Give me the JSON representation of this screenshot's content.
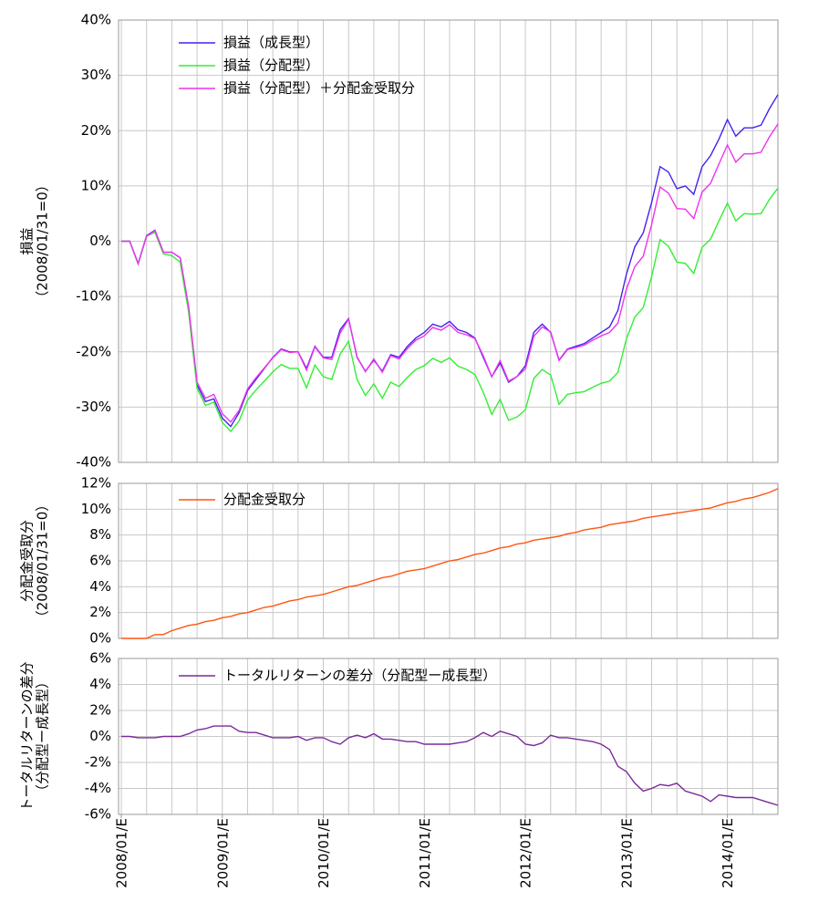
{
  "chart_data": [
    {
      "type": "line",
      "ylabel": [
        "損益",
        "（2008/01/31=0）"
      ],
      "ylim": [
        -40,
        40
      ],
      "yticks": [
        {
          "value": -40,
          "label": "-40%"
        },
        {
          "value": -30,
          "label": "-30%"
        },
        {
          "value": -20,
          "label": "-20%"
        },
        {
          "value": -10,
          "label": "-10%"
        },
        {
          "value": 0,
          "label": "0%"
        },
        {
          "value": 10,
          "label": "10%"
        },
        {
          "value": 20,
          "label": "20%"
        },
        {
          "value": 30,
          "label": "30%"
        },
        {
          "value": 40,
          "label": "40%"
        }
      ],
      "grid": true,
      "series": [
        {
          "name": "損益（成長型）",
          "color": "#4422ee",
          "values": [
            0,
            0,
            -4,
            1,
            2,
            -2,
            -2,
            -3,
            -12,
            -26,
            -29,
            -28.5,
            -32,
            -33.5,
            -31,
            -27,
            -25,
            -23,
            -21,
            -19.5,
            -20,
            -20,
            -23,
            -19,
            -21,
            -21,
            -16,
            -14,
            -21,
            -23.5,
            -21.5,
            -23.5,
            -20.5,
            -21,
            -19,
            -17.5,
            -16.5,
            -15,
            -15.5,
            -14.5,
            -16,
            -16.5,
            -17.5,
            -21,
            -24.5,
            -22,
            -25.5,
            -24.5,
            -22.5,
            -16.5,
            -15,
            -16.5,
            -21.5,
            -19.5,
            -19,
            -18.5,
            -17.5,
            -16.5,
            -15.5,
            -12.5,
            -6,
            -1,
            1.5,
            7,
            13.5,
            12.5,
            9.5,
            10,
            8.5,
            13.5,
            15.5,
            18.5,
            22,
            19,
            20.5,
            20.5,
            21,
            24,
            26.5
          ]
        },
        {
          "name": "損益（分配型）",
          "color": "#33ee33",
          "values": [
            0,
            0,
            -4.1,
            0.9,
            1.6,
            -2.3,
            -2.6,
            -3.8,
            -12.8,
            -26.6,
            -29.7,
            -29.1,
            -32.8,
            -34.4,
            -32.5,
            -28.7,
            -26.9,
            -25.3,
            -23.6,
            -22.3,
            -23,
            -23,
            -26.5,
            -22.4,
            -24.5,
            -25,
            -20.4,
            -18.1,
            -25,
            -27.9,
            -25.8,
            -28.4,
            -25.5,
            -26.3,
            -24.6,
            -23.2,
            -22.5,
            -21.2,
            -21.9,
            -21.1,
            -22.6,
            -23.2,
            -24.1,
            -27.3,
            -31.3,
            -28.6,
            -32.4,
            -31.8,
            -30.5,
            -24.8,
            -23.2,
            -24.2,
            -29.5,
            -27.7,
            -27.4,
            -27.2,
            -26.4,
            -25.7,
            -25.3,
            -23.7,
            -17.7,
            -13.7,
            -12,
            -6.4,
            0.3,
            -0.9,
            -3.8,
            -4,
            -5.8,
            -1.1,
            0.4,
            3.7,
            6.9,
            3.7,
            5,
            4.9,
            5,
            7.6,
            9.6
          ]
        },
        {
          "name": "損益（分配型）＋分配金受取分",
          "color": "#ee33ee",
          "values": [
            0,
            0,
            -4.1,
            0.9,
            1.9,
            -2,
            -2,
            -3,
            -11.8,
            -25.5,
            -28.4,
            -27.7,
            -31.2,
            -32.7,
            -30.6,
            -26.7,
            -24.7,
            -22.9,
            -21.1,
            -19.6,
            -20.1,
            -20,
            -23.3,
            -19.1,
            -21.1,
            -21.4,
            -16.6,
            -14.1,
            -20.9,
            -23.6,
            -21.3,
            -23.7,
            -20.7,
            -21.3,
            -19.4,
            -17.9,
            -17.1,
            -15.6,
            -16.1,
            -15.1,
            -16.5,
            -16.9,
            -17.6,
            -20.7,
            -24.5,
            -21.6,
            -25.3,
            -24.5,
            -23.1,
            -17.2,
            -15.5,
            -16.4,
            -21.6,
            -19.6,
            -19.2,
            -18.8,
            -17.9,
            -17.1,
            -16.5,
            -14.8,
            -8.7,
            -4.6,
            -2.7,
            3,
            9.8,
            8.7,
            5.9,
            5.8,
            4.1,
            8.9,
            10.5,
            14,
            17.4,
            14.3,
            15.8,
            15.8,
            16.1,
            18.9,
            21.2
          ]
        }
      ]
    },
    {
      "type": "line",
      "ylabel": [
        "分配金受取分",
        "（2008/01/31=0）"
      ],
      "ylim": [
        0,
        12
      ],
      "yticks": [
        {
          "value": 0,
          "label": "0%"
        },
        {
          "value": 2,
          "label": "2%"
        },
        {
          "value": 4,
          "label": "4%"
        },
        {
          "value": 6,
          "label": "6%"
        },
        {
          "value": 8,
          "label": "8%"
        },
        {
          "value": 10,
          "label": "10%"
        },
        {
          "value": 12,
          "label": "12%"
        }
      ],
      "grid": true,
      "series": [
        {
          "name": "分配金受取分",
          "color": "#ff5511",
          "values": [
            0,
            0,
            0,
            0,
            0.3,
            0.3,
            0.6,
            0.8,
            1,
            1.1,
            1.3,
            1.4,
            1.6,
            1.7,
            1.9,
            2,
            2.2,
            2.4,
            2.5,
            2.7,
            2.9,
            3,
            3.2,
            3.3,
            3.4,
            3.6,
            3.8,
            4,
            4.1,
            4.3,
            4.5,
            4.7,
            4.8,
            5,
            5.2,
            5.3,
            5.4,
            5.6,
            5.8,
            6,
            6.1,
            6.3,
            6.5,
            6.6,
            6.8,
            7,
            7.1,
            7.3,
            7.4,
            7.6,
            7.7,
            7.8,
            7.9,
            8.1,
            8.2,
            8.4,
            8.5,
            8.6,
            8.8,
            8.9,
            9,
            9.1,
            9.3,
            9.4,
            9.5,
            9.6,
            9.7,
            9.8,
            9.9,
            10,
            10.1,
            10.3,
            10.5,
            10.6,
            10.8,
            10.9,
            11.1,
            11.3,
            11.6
          ]
        }
      ]
    },
    {
      "type": "line",
      "ylabel": [
        "トータルリターンの差分",
        "（分配型ー成長型）"
      ],
      "ylim": [
        -6,
        6
      ],
      "yticks": [
        {
          "value": -6,
          "label": "-6%"
        },
        {
          "value": -4,
          "label": "-4%"
        },
        {
          "value": -2,
          "label": "-2%"
        },
        {
          "value": 0,
          "label": "0%"
        },
        {
          "value": 2,
          "label": "2%"
        },
        {
          "value": 4,
          "label": "4%"
        },
        {
          "value": 6,
          "label": "6%"
        }
      ],
      "grid": true,
      "categories": [
        "2008/01/E",
        null,
        null,
        null,
        null,
        null,
        null,
        null,
        null,
        null,
        null,
        null,
        "2009/01/E",
        null,
        null,
        null,
        null,
        null,
        null,
        null,
        null,
        null,
        null,
        null,
        "2010/01/E",
        null,
        null,
        null,
        null,
        null,
        null,
        null,
        null,
        null,
        null,
        null,
        "2011/01/E",
        null,
        null,
        null,
        null,
        null,
        null,
        null,
        null,
        null,
        null,
        null,
        "2012/01/E",
        null,
        null,
        null,
        null,
        null,
        null,
        null,
        null,
        null,
        null,
        null,
        "2013/01/E",
        null,
        null,
        null,
        null,
        null,
        null,
        null,
        null,
        null,
        null,
        null,
        "2014/01/E",
        null,
        null,
        null,
        null,
        null,
        null
      ],
      "series": [
        {
          "name": "トータルリターンの差分（分配型ー成長型）",
          "color": "#7a2a9a",
          "values": [
            0,
            0,
            -0.1,
            -0.1,
            -0.1,
            0,
            0,
            0,
            0.2,
            0.5,
            0.6,
            0.8,
            0.8,
            0.8,
            0.4,
            0.3,
            0.3,
            0.1,
            -0.1,
            -0.1,
            -0.1,
            0,
            -0.3,
            -0.1,
            -0.1,
            -0.4,
            -0.6,
            -0.1,
            0.1,
            -0.1,
            0.2,
            -0.2,
            -0.2,
            -0.3,
            -0.4,
            -0.4,
            -0.6,
            -0.6,
            -0.6,
            -0.6,
            -0.5,
            -0.4,
            -0.1,
            0.3,
            0,
            0.4,
            0.2,
            0,
            -0.6,
            -0.7,
            -0.5,
            0.1,
            -0.1,
            -0.1,
            -0.2,
            -0.3,
            -0.4,
            -0.6,
            -1,
            -2.3,
            -2.7,
            -3.6,
            -4.2,
            -4,
            -3.7,
            -3.8,
            -3.6,
            -4.2,
            -4.4,
            -4.6,
            -5,
            -4.5,
            -4.6,
            -4.7,
            -4.7,
            -4.7,
            -4.9,
            -5.1,
            -5.3
          ]
        }
      ]
    }
  ]
}
